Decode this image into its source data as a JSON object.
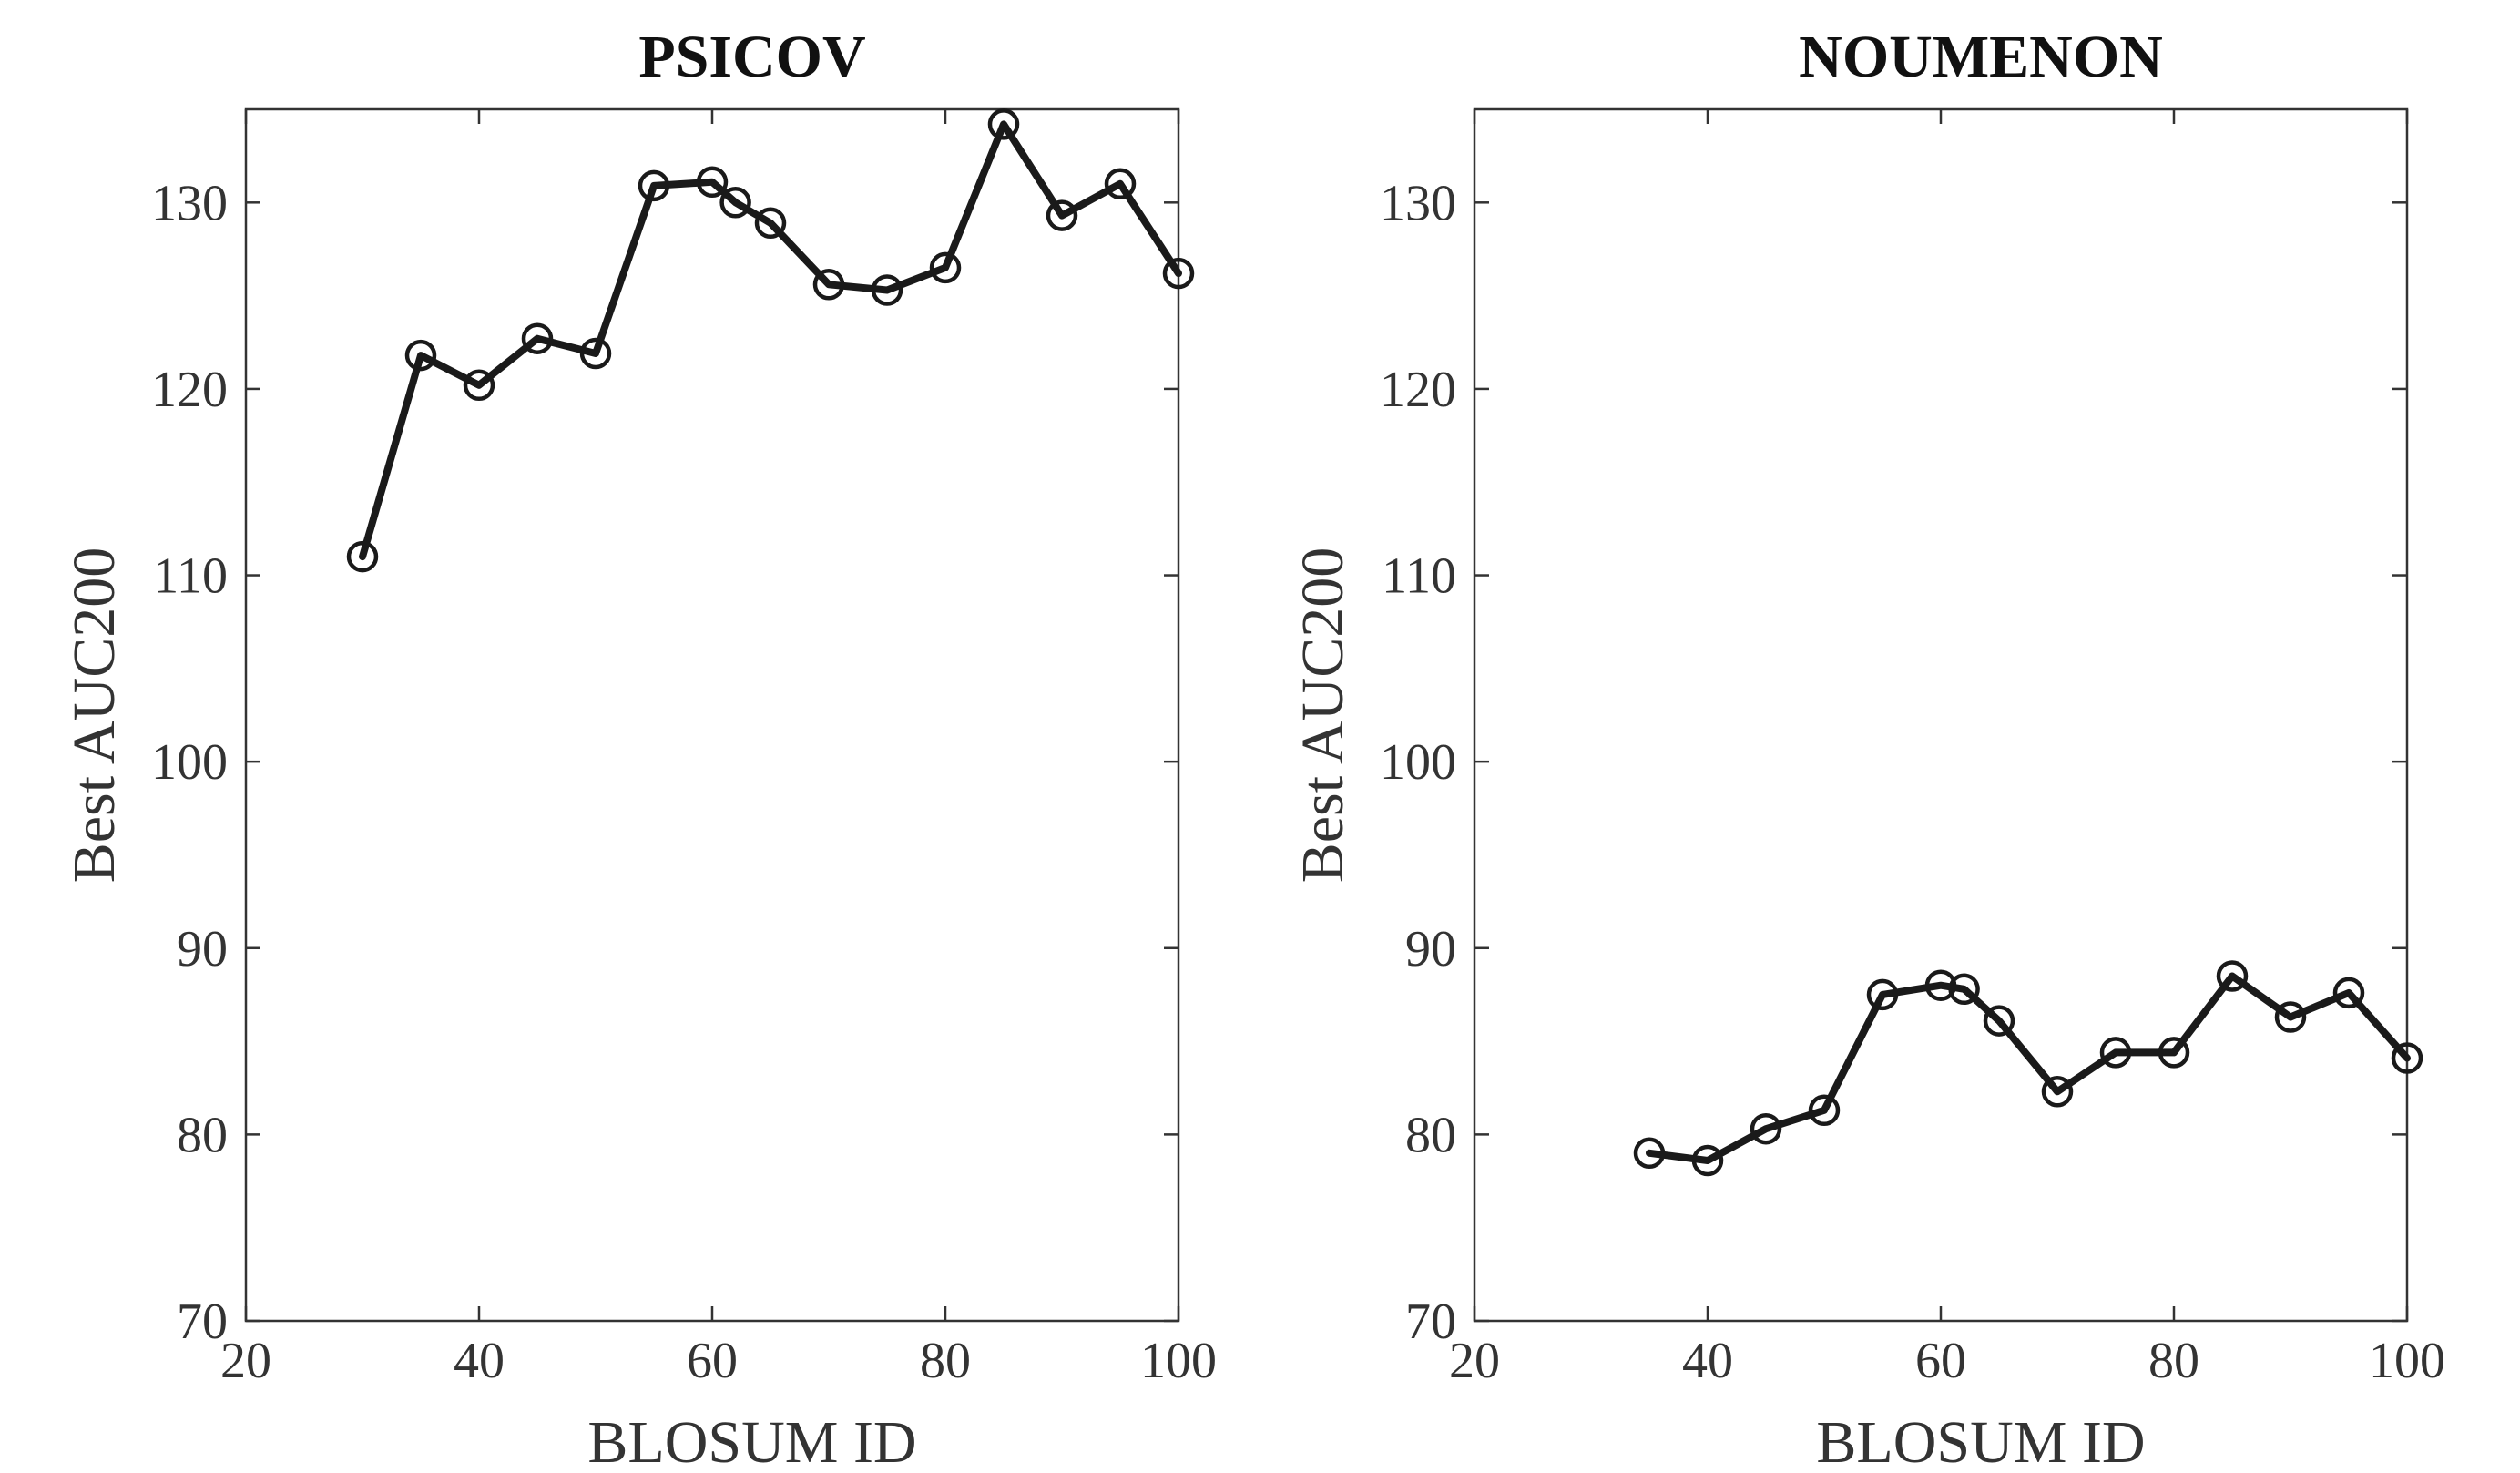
{
  "colors": {
    "series": "#1a1a1a",
    "axis": "#333333",
    "background": "#ffffff"
  },
  "chart_data": [
    {
      "type": "line",
      "title": "PSICOV",
      "xlabel": "BLOSUM ID",
      "ylabel": "Best AUC200",
      "xlim": [
        20,
        100
      ],
      "ylim": [
        70,
        135
      ],
      "xticks": [
        20,
        40,
        60,
        80,
        100
      ],
      "yticks": [
        70,
        80,
        90,
        100,
        110,
        120,
        130
      ],
      "grid": false,
      "marker": "open-circle",
      "x": [
        30,
        35,
        40,
        45,
        50,
        55,
        60,
        62,
        65,
        70,
        75,
        80,
        85,
        90,
        95,
        100
      ],
      "y": [
        111.0,
        121.8,
        120.2,
        122.7,
        121.9,
        130.9,
        131.1,
        130.0,
        128.9,
        125.6,
        125.3,
        126.5,
        134.2,
        129.3,
        131.0,
        126.2
      ]
    },
    {
      "type": "line",
      "title": "NOUMENON",
      "xlabel": "BLOSUM ID",
      "ylabel": "Best AUC200",
      "xlim": [
        20,
        100
      ],
      "ylim": [
        70,
        135
      ],
      "xticks": [
        20,
        40,
        60,
        80,
        100
      ],
      "yticks": [
        70,
        80,
        90,
        100,
        110,
        120,
        130
      ],
      "grid": false,
      "marker": "open-circle",
      "x": [
        35,
        40,
        45,
        50,
        55,
        60,
        62,
        65,
        70,
        75,
        80,
        85,
        90,
        95,
        100
      ],
      "y": [
        79.0,
        78.6,
        80.3,
        81.3,
        87.5,
        88.0,
        87.8,
        86.1,
        82.3,
        84.4,
        84.4,
        88.5,
        86.3,
        87.6,
        84.1
      ]
    }
  ]
}
